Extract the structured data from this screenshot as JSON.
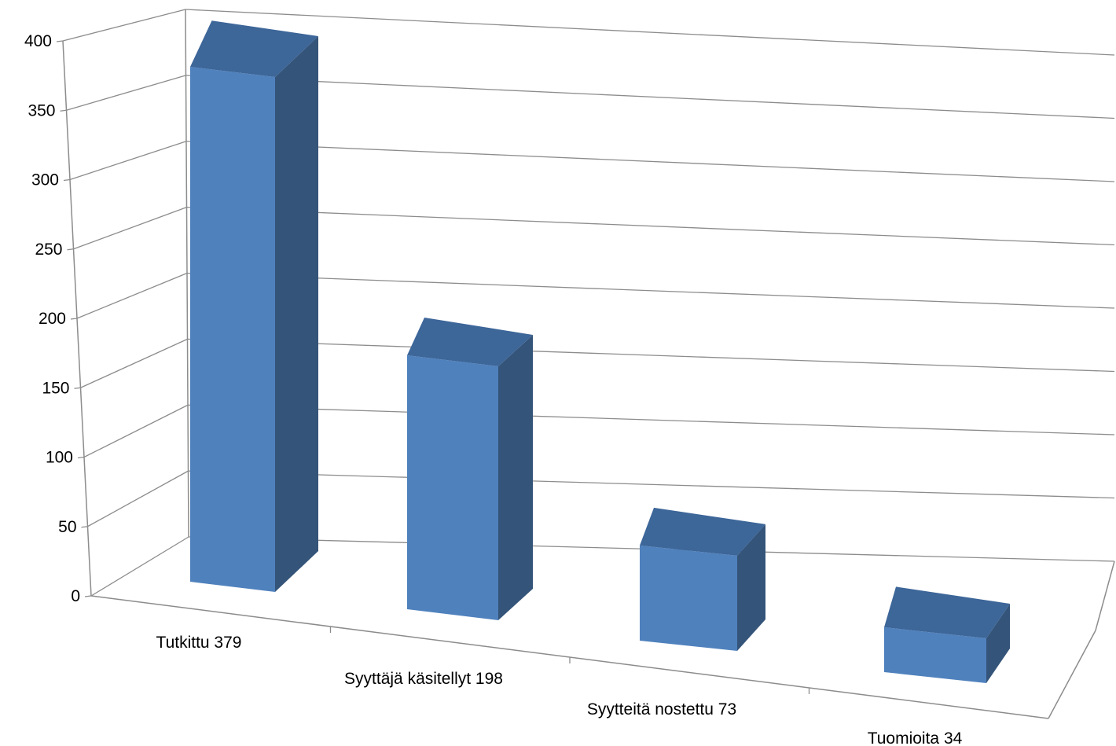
{
  "chart_data": {
    "type": "bar",
    "categories": [
      "Tutkittu 379",
      "Syyttäjä käsitellyt 198",
      "Syytteitä nostettu 73",
      "Tuomioita 34"
    ],
    "values": [
      379,
      198,
      73,
      34
    ],
    "yticks": [
      "0",
      "50",
      "100",
      "150",
      "200",
      "250",
      "300",
      "350",
      "400"
    ],
    "ylim": [
      0,
      400
    ],
    "title": "",
    "xlabel": "",
    "ylabel": "",
    "legend": "none",
    "grid": true,
    "colors": {
      "front": "#4f81bd",
      "side": "#345479",
      "top": "#3d6699",
      "grid": "#8c8c8c"
    }
  }
}
